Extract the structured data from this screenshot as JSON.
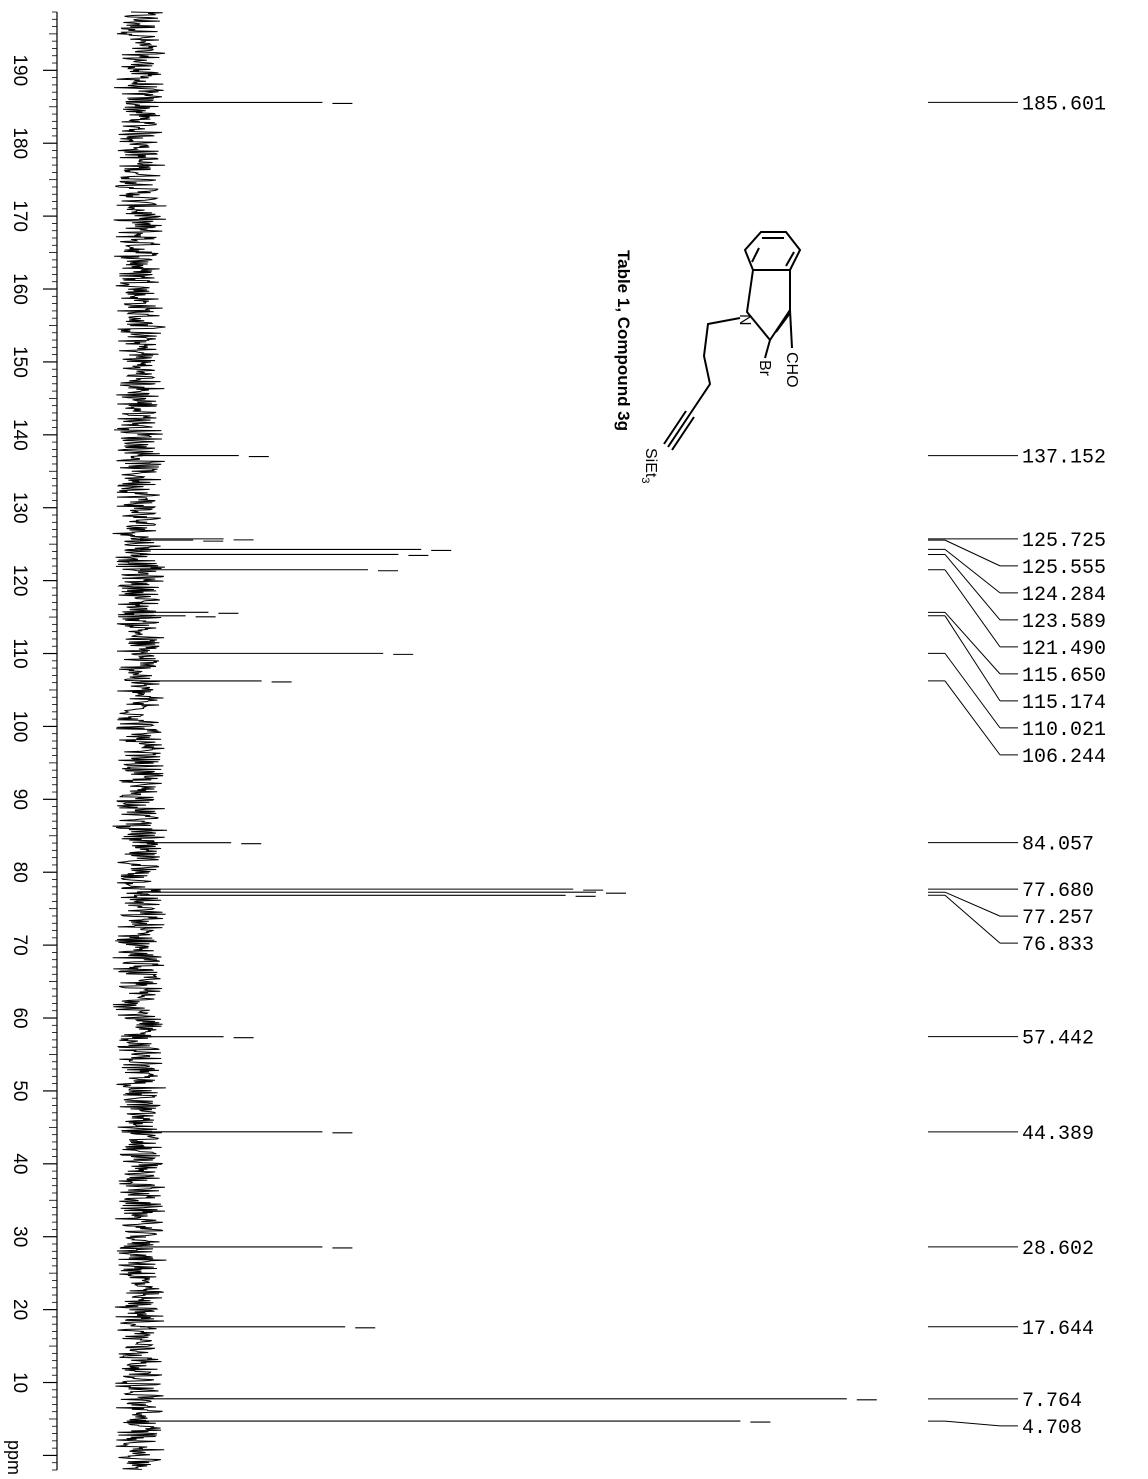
{
  "chart_data": {
    "type": "line",
    "orientation": "rotated-90",
    "spectrum": "13C NMR",
    "title": "Table 1, Compound 3g",
    "xlabel": "ppm",
    "xlim": [
      -2,
      198
    ],
    "x_axis_ticks": [
      190,
      180,
      170,
      160,
      150,
      140,
      130,
      120,
      110,
      100,
      90,
      80,
      70,
      60,
      50,
      40,
      30,
      20,
      10
    ],
    "structure_labels": {
      "cho": "CHO",
      "br": "Br",
      "n": "N",
      "si_base": "SiEt",
      "si_sub": "3"
    },
    "peaks": [
      {
        "ppm": 185.601,
        "intensity": 0.24,
        "label": "185.601"
      },
      {
        "ppm": 137.152,
        "intensity": 0.13,
        "label": "137.152"
      },
      {
        "ppm": 125.725,
        "intensity": 0.11,
        "label": "125.725"
      },
      {
        "ppm": 125.555,
        "intensity": 0.07,
        "label": "125.555"
      },
      {
        "ppm": 124.284,
        "intensity": 0.37,
        "label": "124.284"
      },
      {
        "ppm": 123.589,
        "intensity": 0.34,
        "label": "123.589"
      },
      {
        "ppm": 121.49,
        "intensity": 0.3,
        "label": "121.490"
      },
      {
        "ppm": 115.65,
        "intensity": 0.09,
        "label": "115.650"
      },
      {
        "ppm": 115.174,
        "intensity": 0.06,
        "label": "115.174"
      },
      {
        "ppm": 110.021,
        "intensity": 0.32,
        "label": "110.021"
      },
      {
        "ppm": 106.244,
        "intensity": 0.16,
        "label": "106.244"
      },
      {
        "ppm": 84.057,
        "intensity": 0.12,
        "label": "84.057"
      },
      {
        "ppm": 77.68,
        "intensity": 0.57,
        "label": "77.680"
      },
      {
        "ppm": 77.257,
        "intensity": 0.6,
        "label": "77.257"
      },
      {
        "ppm": 76.833,
        "intensity": 0.56,
        "label": "76.833"
      },
      {
        "ppm": 57.442,
        "intensity": 0.11,
        "label": "57.442"
      },
      {
        "ppm": 44.389,
        "intensity": 0.24,
        "label": "44.389"
      },
      {
        "ppm": 28.602,
        "intensity": 0.24,
        "label": "28.602"
      },
      {
        "ppm": 17.644,
        "intensity": 0.27,
        "label": "17.644"
      },
      {
        "ppm": 7.764,
        "intensity": 0.93,
        "label": "7.764"
      },
      {
        "ppm": 4.708,
        "intensity": 0.79,
        "label": "4.708"
      }
    ]
  }
}
